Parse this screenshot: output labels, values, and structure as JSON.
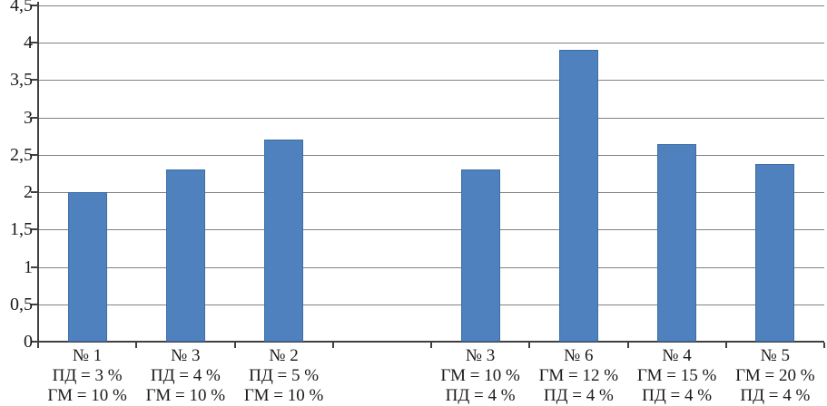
{
  "chart_data": {
    "type": "bar",
    "title": "",
    "xlabel": "",
    "ylabel": "",
    "legend": "none",
    "grid": true,
    "ylim": [
      0,
      4.5
    ],
    "y_tick_values": [
      0,
      0.5,
      1,
      1.5,
      2,
      2.5,
      3,
      3.5,
      4,
      4.5
    ],
    "y_tick_labels": [
      "0",
      "0,5",
      "1",
      "1,5",
      "2",
      "2,5",
      "3",
      "3,5",
      "4",
      "4,5"
    ],
    "categories": [
      "№ 1\nПД = 3 %\nГМ = 10 %",
      "№ 3\nПД = 4 %\nГМ = 10 %",
      "№ 2\nПД = 5 %\nГМ = 10 %",
      "",
      "№ 3\nГМ = 10 %\nПД = 4 %",
      "№ 6\nГМ = 12 %\nПД = 4 %",
      "№ 4\nГМ = 15 %\nПД = 4 %",
      "№ 5\nГМ = 20 %\nПД = 4 %"
    ],
    "values": [
      2.0,
      2.3,
      2.7,
      null,
      2.3,
      3.9,
      2.65,
      2.38
    ],
    "colors": {
      "bar_fill": "#4e81bd",
      "bar_border": "#3d6da3",
      "gridline": "#828282",
      "axis": "#404040",
      "text": "#1a1a1a",
      "background": "#ffffff"
    }
  }
}
